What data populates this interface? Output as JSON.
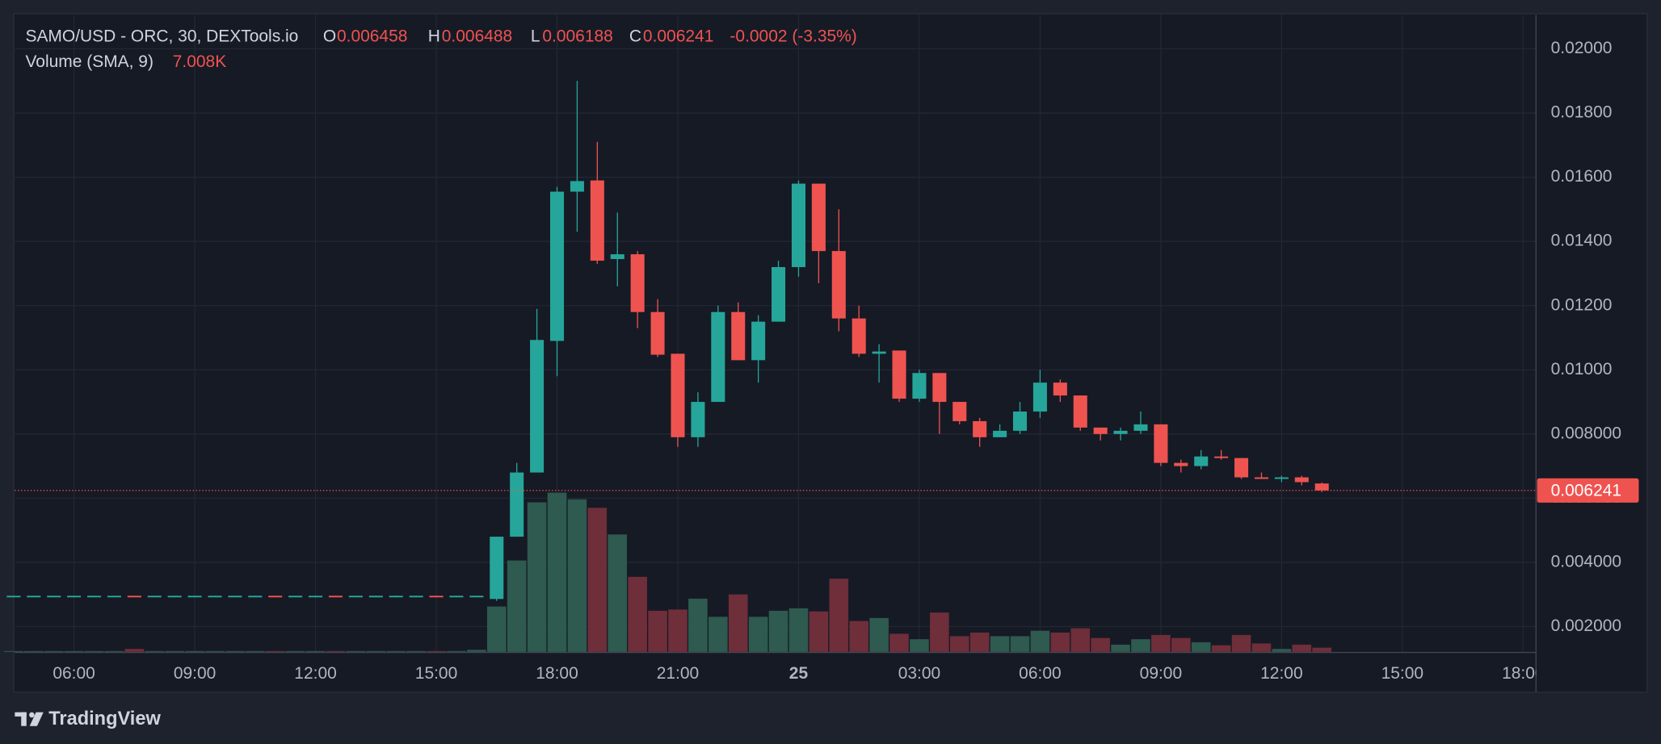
{
  "chart_data": {
    "type": "candlestick",
    "title": "SAMO/USD - ORC, 30, DEXTools.io",
    "legend": {
      "open_label": "O",
      "open": "0.006458",
      "high_label": "H",
      "high": "0.006488",
      "low_label": "L",
      "low": "0.006188",
      "close_label": "C",
      "close": "0.006241",
      "change": "-0.0002 (-3.35%)"
    },
    "volume_label": "Volume (SMA, 9)",
    "volume_value_label": "7.008K",
    "x": [
      4.5,
      5,
      5.5,
      6,
      6.5,
      7,
      7.5,
      8,
      8.5,
      9,
      9.5,
      10,
      10.5,
      11,
      11.5,
      12,
      12.5,
      13,
      13.5,
      14,
      14.5,
      15,
      15.5,
      16,
      16.5,
      17,
      17.5,
      18,
      18.5,
      19,
      19.5,
      20,
      20.5,
      21,
      21.5,
      22,
      22.5,
      23,
      23.5,
      24,
      24.5,
      25,
      25.5,
      26,
      26.5,
      27,
      27.5,
      28,
      28.5,
      29,
      29.5,
      30,
      30.5,
      31,
      31.5,
      32,
      32.5,
      33,
      33.5,
      34,
      34.5,
      35,
      35.5,
      36,
      36.5,
      37
    ],
    "open": [
      0.00294,
      0.00294,
      0.00294,
      0.00294,
      0.00294,
      0.00294,
      0.00296,
      0.00294,
      0.00294,
      0.00294,
      0.00294,
      0.00294,
      0.00294,
      0.00296,
      0.00294,
      0.00294,
      0.00296,
      0.00294,
      0.00294,
      0.00294,
      0.00294,
      0.00296,
      0.00294,
      0.00294,
      0.00286,
      0.0048,
      0.0068,
      0.0109,
      0.01555,
      0.0159,
      0.01345,
      0.0136,
      0.0118,
      0.0105,
      0.0079,
      0.009,
      0.0118,
      0.0103,
      0.0115,
      0.0132,
      0.0158,
      0.0137,
      0.0116,
      0.0105,
      0.0106,
      0.0091,
      0.0099,
      0.009,
      0.0084,
      0.0079,
      0.0081,
      0.0087,
      0.0096,
      0.0092,
      0.0082,
      0.008,
      0.0081,
      0.0083,
      0.0071,
      0.007,
      0.0073,
      0.00725,
      0.00665,
      0.0066,
      0.00665,
      0.006458
    ],
    "high": [
      0.00296,
      0.00296,
      0.00296,
      0.00296,
      0.00296,
      0.00296,
      0.00296,
      0.00296,
      0.00296,
      0.00296,
      0.00296,
      0.00296,
      0.00296,
      0.00296,
      0.00296,
      0.00296,
      0.00296,
      0.00296,
      0.00296,
      0.00296,
      0.00296,
      0.00296,
      0.00296,
      0.00296,
      0.0048,
      0.0071,
      0.0119,
      0.0157,
      0.019,
      0.0171,
      0.0149,
      0.0137,
      0.0122,
      0.0105,
      0.0093,
      0.012,
      0.0121,
      0.0117,
      0.0134,
      0.0159,
      0.0158,
      0.015,
      0.012,
      0.0108,
      0.0106,
      0.01,
      0.0099,
      0.009,
      0.0085,
      0.0083,
      0.009,
      0.01,
      0.0097,
      0.0092,
      0.0082,
      0.0082,
      0.0087,
      0.0083,
      0.0072,
      0.0075,
      0.0075,
      0.00725,
      0.0068,
      0.0067,
      0.0067,
      0.006488
    ],
    "low": [
      0.00294,
      0.00294,
      0.00294,
      0.00294,
      0.00294,
      0.00294,
      0.00294,
      0.00294,
      0.00294,
      0.00294,
      0.00294,
      0.00294,
      0.00294,
      0.00294,
      0.00294,
      0.00294,
      0.00294,
      0.00294,
      0.00294,
      0.00294,
      0.00294,
      0.00294,
      0.00294,
      0.00294,
      0.0028,
      0.0048,
      0.0068,
      0.0098,
      0.0143,
      0.0133,
      0.0126,
      0.0113,
      0.0104,
      0.0076,
      0.0076,
      0.009,
      0.0103,
      0.0096,
      0.0115,
      0.0129,
      0.0127,
      0.0112,
      0.0104,
      0.0096,
      0.009,
      0.009,
      0.008,
      0.0083,
      0.0076,
      0.0079,
      0.008,
      0.0085,
      0.009,
      0.0081,
      0.0078,
      0.0078,
      0.008,
      0.007,
      0.0068,
      0.0069,
      0.0072,
      0.0066,
      0.0066,
      0.0065,
      0.0064,
      0.006188
    ],
    "close": [
      0.00296,
      0.00296,
      0.00296,
      0.00296,
      0.00296,
      0.00296,
      0.00294,
      0.00296,
      0.00296,
      0.00296,
      0.00296,
      0.00296,
      0.00296,
      0.00294,
      0.00296,
      0.00296,
      0.00294,
      0.00296,
      0.00296,
      0.00296,
      0.00296,
      0.00294,
      0.00296,
      0.00296,
      0.0048,
      0.0068,
      0.01093,
      0.01555,
      0.01588,
      0.0134,
      0.0136,
      0.0118,
      0.01047,
      0.0079,
      0.009,
      0.0118,
      0.0103,
      0.0115,
      0.0132,
      0.0158,
      0.0137,
      0.0116,
      0.0105,
      0.01057,
      0.0091,
      0.0099,
      0.009,
      0.0084,
      0.0079,
      0.0081,
      0.0087,
      0.0096,
      0.0092,
      0.0082,
      0.008,
      0.0081,
      0.0083,
      0.0071,
      0.007,
      0.0073,
      0.00725,
      0.00665,
      0.0066,
      0.00665,
      0.0065,
      0.006241
    ],
    "volume": [
      1500,
      1500,
      1500,
      1500,
      1500,
      1500,
      5000,
      1500,
      1500,
      1500,
      1500,
      1500,
      1500,
      1500,
      1500,
      1500,
      1500,
      1500,
      1500,
      1500,
      1500,
      1500,
      1500,
      3500,
      75000,
      151000,
      247000,
      263000,
      252000,
      238000,
      194000,
      124000,
      68000,
      70000,
      88000,
      58000,
      95000,
      58000,
      68000,
      72000,
      67000,
      121000,
      51000,
      56000,
      30000,
      21000,
      65000,
      26000,
      32000,
      26000,
      26000,
      35000,
      32000,
      39000,
      23000,
      12000,
      21000,
      28000,
      23000,
      16000,
      11000,
      28000,
      14000,
      5000,
      12000,
      7008
    ],
    "xlim": [
      4.53,
      42.32
    ],
    "xticks": [
      {
        "value": 6,
        "label": "06:00"
      },
      {
        "value": 9,
        "label": "09:00"
      },
      {
        "value": 12,
        "label": "12:00"
      },
      {
        "value": 15,
        "label": "15:00"
      },
      {
        "value": 18,
        "label": "18:00"
      },
      {
        "value": 21,
        "label": "21:00"
      },
      {
        "value": 24,
        "label": "25"
      },
      {
        "value": 27,
        "label": "03:00"
      },
      {
        "value": 30,
        "label": "06:00"
      },
      {
        "value": 33,
        "label": "09:00"
      },
      {
        "value": 36,
        "label": "12:00"
      },
      {
        "value": 39,
        "label": "15:00"
      },
      {
        "value": 42,
        "label": "18:00"
      }
    ],
    "ylim": [
      0.00121,
      0.02106
    ],
    "yticks": [
      {
        "value": 0.002,
        "label": "0.002000"
      },
      {
        "value": 0.004,
        "label": "0.004000"
      },
      {
        "value": 0.006,
        "label": "0.006000"
      },
      {
        "value": 0.008,
        "label": "0.008000"
      },
      {
        "value": 0.01,
        "label": "0.01000"
      },
      {
        "value": 0.012,
        "label": "0.01200"
      },
      {
        "value": 0.014,
        "label": "0.01400"
      },
      {
        "value": 0.016,
        "label": "0.01600"
      },
      {
        "value": 0.018,
        "label": "0.01800"
      },
      {
        "value": 0.02,
        "label": "0.02000"
      }
    ],
    "price_tag": {
      "value": 0.006241,
      "label": "0.006241"
    },
    "grid": true,
    "colors": {
      "up": "#26a69a",
      "down": "#ef5350",
      "up_volume": "#2e5a4f",
      "down_volume": "#6e2e3a"
    }
  },
  "branding": "TradingView"
}
